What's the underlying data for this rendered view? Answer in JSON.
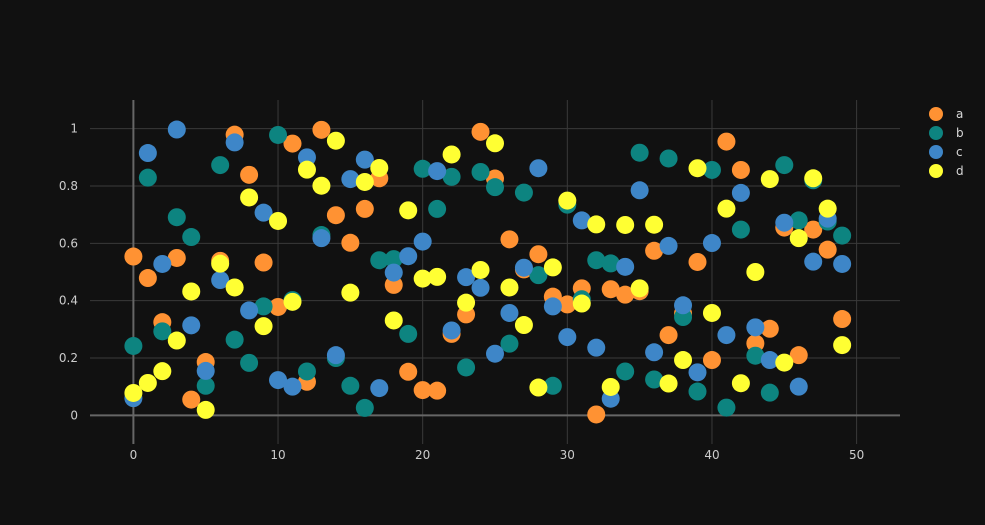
{
  "chart_data": {
    "type": "scatter",
    "title": "",
    "xlabel": "",
    "ylabel": "",
    "xlim": [
      -3,
      53
    ],
    "ylim": [
      -0.1,
      1.1
    ],
    "xticks": [
      0,
      10,
      20,
      30,
      40,
      50
    ],
    "yticks": [
      0,
      0.2,
      0.4,
      0.6,
      0.8,
      1
    ],
    "ytick_labels": [
      "0",
      "0.2",
      "0.4",
      "0.6",
      "0.8",
      "1"
    ],
    "grid": true,
    "legend_position": "top-right",
    "background": "#111111",
    "x": [
      0,
      1,
      2,
      3,
      4,
      5,
      6,
      7,
      8,
      9,
      10,
      11,
      12,
      13,
      14,
      15,
      16,
      17,
      18,
      19,
      20,
      21,
      22,
      23,
      24,
      25,
      26,
      27,
      28,
      29,
      30,
      31,
      32,
      33,
      34,
      35,
      36,
      37,
      38,
      39,
      40,
      41,
      42,
      43,
      44,
      45,
      46,
      47,
      48,
      49
    ],
    "series": [
      {
        "name": "a",
        "color": "#ff9233",
        "values": [
          0.554,
          0.479,
          0.325,
          0.549,
          0.055,
          0.186,
          0.539,
          0.979,
          0.839,
          0.533,
          0.378,
          0.948,
          0.117,
          0.996,
          0.698,
          0.602,
          0.72,
          0.827,
          0.455,
          0.152,
          0.088,
          0.086,
          0.284,
          0.352,
          0.989,
          0.826,
          0.614,
          0.509,
          0.562,
          0.414,
          0.387,
          0.443,
          0.003,
          0.44,
          0.421,
          0.433,
          0.574,
          0.28,
          0.356,
          0.535,
          0.193,
          0.955,
          0.856,
          0.251,
          0.302,
          0.655,
          0.21,
          0.648,
          0.578,
          0.336
        ]
      },
      {
        "name": "b",
        "color": "#0d8480",
        "values": [
          0.242,
          0.829,
          0.293,
          0.691,
          0.622,
          0.103,
          0.873,
          0.264,
          0.183,
          0.38,
          0.978,
          0.402,
          0.153,
          0.629,
          0.2,
          0.103,
          0.026,
          0.541,
          0.545,
          0.284,
          0.86,
          0.72,
          0.832,
          0.167,
          0.849,
          0.796,
          0.25,
          0.777,
          0.489,
          0.103,
          0.735,
          0.405,
          0.541,
          0.53,
          0.153,
          0.916,
          0.125,
          0.896,
          0.343,
          0.083,
          0.856,
          0.027,
          0.648,
          0.208,
          0.079,
          0.873,
          0.68,
          0.82,
          0.676,
          0.627
        ]
      },
      {
        "name": "c",
        "color": "#3e86c8",
        "values": [
          0.06,
          0.915,
          0.528,
          0.997,
          0.314,
          0.155,
          0.472,
          0.952,
          0.366,
          0.707,
          0.123,
          0.1,
          0.9,
          0.618,
          0.21,
          0.824,
          0.892,
          0.095,
          0.498,
          0.555,
          0.606,
          0.852,
          0.296,
          0.482,
          0.445,
          0.215,
          0.357,
          0.515,
          0.862,
          0.38,
          0.273,
          0.68,
          0.236,
          0.058,
          0.518,
          0.785,
          0.22,
          0.591,
          0.384,
          0.15,
          0.601,
          0.28,
          0.776,
          0.307,
          0.193,
          0.672,
          0.1,
          0.536,
          0.686,
          0.528
        ]
      },
      {
        "name": "d",
        "color": "#ffff33",
        "values": [
          0.078,
          0.113,
          0.154,
          0.261,
          0.432,
          0.019,
          0.529,
          0.446,
          0.76,
          0.311,
          0.678,
          0.396,
          0.857,
          0.801,
          0.958,
          0.428,
          0.814,
          0.863,
          0.331,
          0.715,
          0.477,
          0.483,
          0.91,
          0.393,
          0.507,
          0.949,
          0.446,
          0.315,
          0.097,
          0.516,
          0.749,
          0.39,
          0.666,
          0.099,
          0.664,
          0.443,
          0.665,
          0.111,
          0.193,
          0.862,
          0.357,
          0.721,
          0.112,
          0.5,
          0.824,
          0.184,
          0.618,
          0.827,
          0.721,
          0.245
        ]
      }
    ]
  }
}
